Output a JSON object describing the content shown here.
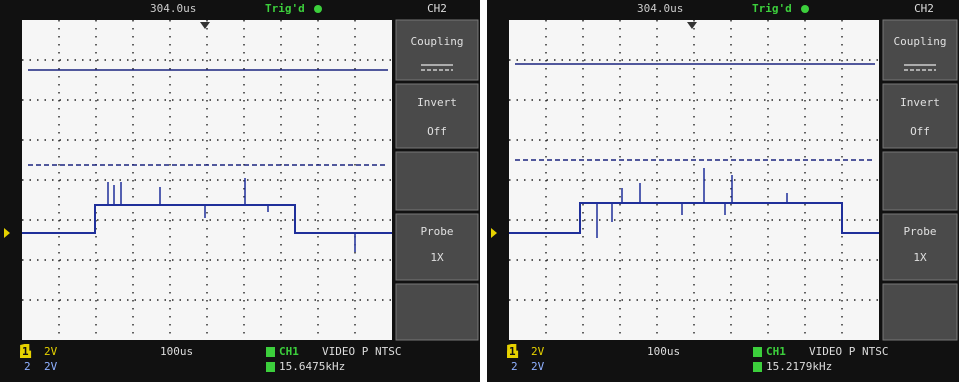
{
  "panels": [
    {
      "top": {
        "time": "304.0us",
        "trigger": "Trig'd",
        "channel": "CH2"
      },
      "menu": [
        {
          "label": "Coupling"
        },
        {
          "label": "Invert",
          "value": "Off"
        },
        {
          "label": "Probe",
          "value": "1X"
        }
      ],
      "bottom": {
        "ch1_id": "1",
        "ch1_scale": "2V",
        "ch2_id": "2",
        "ch2_scale": "2V",
        "timebase": "100us",
        "trigger_source": "CH1",
        "trigger_mode": "VIDEO P NTSC",
        "frequency": "15.6475kHz"
      }
    },
    {
      "top": {
        "time": "304.0us",
        "trigger": "Trig'd",
        "channel": "CH2"
      },
      "menu": [
        {
          "label": "Coupling"
        },
        {
          "label": "Invert",
          "value": "Off"
        },
        {
          "label": "Probe",
          "value": "1X"
        }
      ],
      "bottom": {
        "ch1_id": "1",
        "ch1_scale": "2V",
        "ch2_id": "2",
        "ch2_scale": "2V",
        "timebase": "100us",
        "trigger_source": "CH1",
        "trigger_mode": "VIDEO P NTSC",
        "frequency": "15.2179kHz"
      }
    }
  ]
}
